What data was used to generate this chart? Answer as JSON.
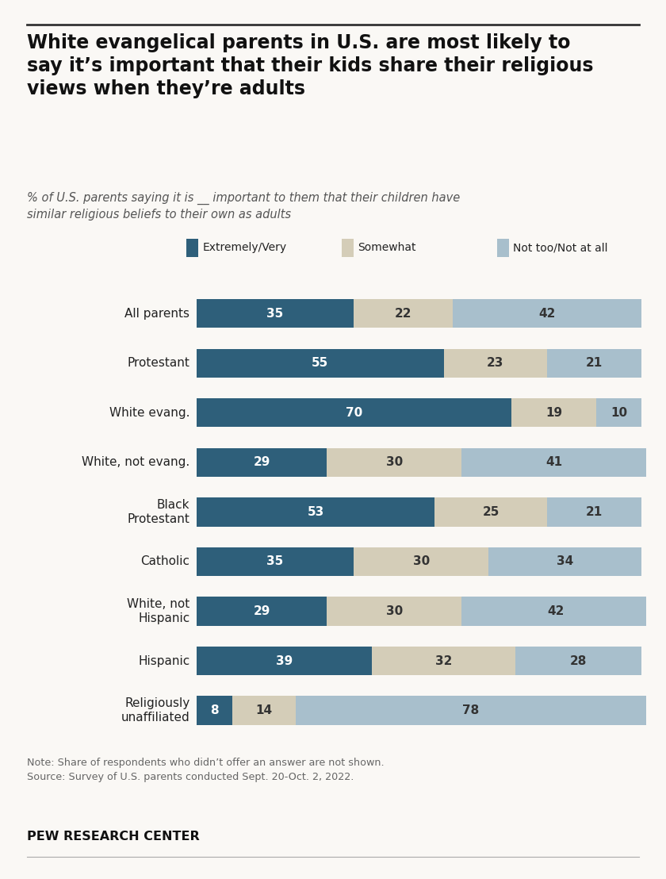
{
  "title": "White evangelical parents in U.S. are most likely to\nsay it’s important that their kids share their religious\nviews when they’re adults",
  "subtitle": "% of U.S. parents saying it is __ important to them that their children have\nsimilar religious beliefs to their own as adults",
  "categories": [
    "All parents",
    "Protestant",
    "White evang.",
    "White, not evang.",
    "Black\nProtestant",
    "Catholic",
    "White, not\nHispanic",
    "Hispanic",
    "Religiously\nunaffiliated"
  ],
  "extremely_very": [
    35,
    55,
    70,
    29,
    53,
    35,
    29,
    39,
    8
  ],
  "somewhat": [
    22,
    23,
    19,
    30,
    25,
    30,
    30,
    32,
    14
  ],
  "not_too": [
    42,
    21,
    10,
    41,
    21,
    34,
    42,
    28,
    78
  ],
  "color_extremely": "#2e5f7a",
  "color_somewhat": "#d4cdb8",
  "color_not_too": "#a8bfcc",
  "note": "Note: Share of respondents who didn’t offer an answer are not shown.\nSource: Survey of U.S. parents conducted Sept. 20-Oct. 2, 2022.",
  "footer": "PEW RESEARCH CENTER",
  "legend_labels": [
    "Extremely/Very",
    "Somewhat",
    "Not too/Not at all"
  ],
  "bar_height": 0.58,
  "background_color": "#faf8f5"
}
